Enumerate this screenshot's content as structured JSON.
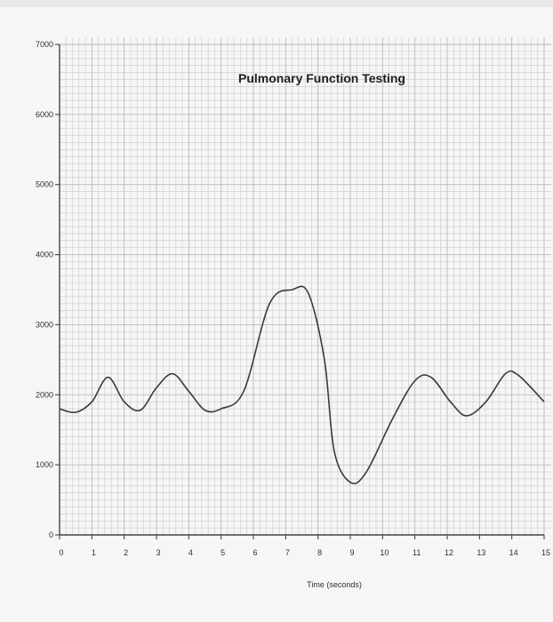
{
  "chart_data": {
    "type": "line",
    "title": "Pulmonary Function Testing",
    "xlabel": "Time (seconds)",
    "ylabel": "",
    "xlim": [
      0,
      15
    ],
    "ylim": [
      0,
      7000
    ],
    "x_ticks": [
      "0",
      "1",
      "2",
      "3",
      "4",
      "5",
      "6",
      "7",
      "8",
      "9",
      "10",
      "11",
      "12",
      "13",
      "14",
      "15"
    ],
    "y_ticks": [
      "0",
      "1000",
      "2000",
      "3000",
      "4000",
      "5000",
      "6000",
      "7000"
    ],
    "grid": true,
    "series": [
      {
        "points": [
          [
            0,
            1800
          ],
          [
            0.5,
            1750
          ],
          [
            1.0,
            1900
          ],
          [
            1.5,
            2250
          ],
          [
            2.0,
            1900
          ],
          [
            2.5,
            1780
          ],
          [
            3.0,
            2100
          ],
          [
            3.5,
            2300
          ],
          [
            4.0,
            2050
          ],
          [
            4.5,
            1780
          ],
          [
            5.0,
            1800
          ],
          [
            5.7,
            2050
          ],
          [
            6.5,
            3300
          ],
          [
            7.2,
            3500
          ],
          [
            7.7,
            3450
          ],
          [
            8.2,
            2500
          ],
          [
            8.5,
            1200
          ],
          [
            9.0,
            750
          ],
          [
            9.5,
            900
          ],
          [
            10.3,
            1650
          ],
          [
            11.0,
            2200
          ],
          [
            11.5,
            2250
          ],
          [
            12.1,
            1900
          ],
          [
            12.6,
            1700
          ],
          [
            13.2,
            1900
          ],
          [
            13.8,
            2300
          ],
          [
            14.2,
            2280
          ],
          [
            15.0,
            1900
          ]
        ]
      }
    ]
  }
}
